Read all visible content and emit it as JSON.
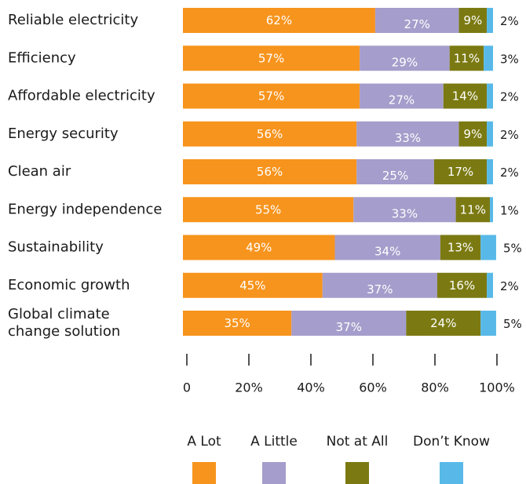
{
  "chart_data": {
    "type": "bar",
    "orientation": "horizontal",
    "stacked": true,
    "title": "",
    "xlabel": "",
    "ylabel": "",
    "xlim": [
      0,
      100
    ],
    "grid": false,
    "legend_position": "bottom",
    "categories": [
      "Reliable electricity",
      "Efficiency",
      "Affordable electricity",
      "Energy security",
      "Clean air",
      "Energy independence",
      "Sustainability",
      "Economic growth",
      "Global climate change solution"
    ],
    "category_lines": [
      [
        "Reliable electricity"
      ],
      [
        "Efficiency"
      ],
      [
        "Affordable electricity"
      ],
      [
        "Energy security"
      ],
      [
        "Clean air"
      ],
      [
        "Energy independence"
      ],
      [
        "Sustainability"
      ],
      [
        "Economic growth"
      ],
      [
        "Global climate",
        "change solution"
      ]
    ],
    "series": [
      {
        "name": "A Lot",
        "color": "#f7941d",
        "values": [
          62,
          57,
          57,
          56,
          56,
          55,
          49,
          45,
          35
        ]
      },
      {
        "name": "A Little",
        "color": "#a59dcb",
        "values": [
          27,
          29,
          27,
          33,
          25,
          33,
          34,
          37,
          37
        ]
      },
      {
        "name": "Not at All",
        "color": "#7b7a12",
        "values": [
          9,
          11,
          14,
          9,
          17,
          11,
          13,
          16,
          24
        ]
      },
      {
        "name": "Don’t Know",
        "color": "#58b9e8",
        "values": [
          2,
          3,
          2,
          2,
          2,
          1,
          5,
          2,
          5
        ]
      }
    ],
    "x_ticks": [
      {
        "value": 0,
        "label": "0"
      },
      {
        "value": 20,
        "label": "20%"
      },
      {
        "value": 40,
        "label": "40%"
      },
      {
        "value": 60,
        "label": "60%"
      },
      {
        "value": 80,
        "label": "80%"
      },
      {
        "value": 100,
        "label": "100%"
      }
    ],
    "value_suffix": "%"
  }
}
